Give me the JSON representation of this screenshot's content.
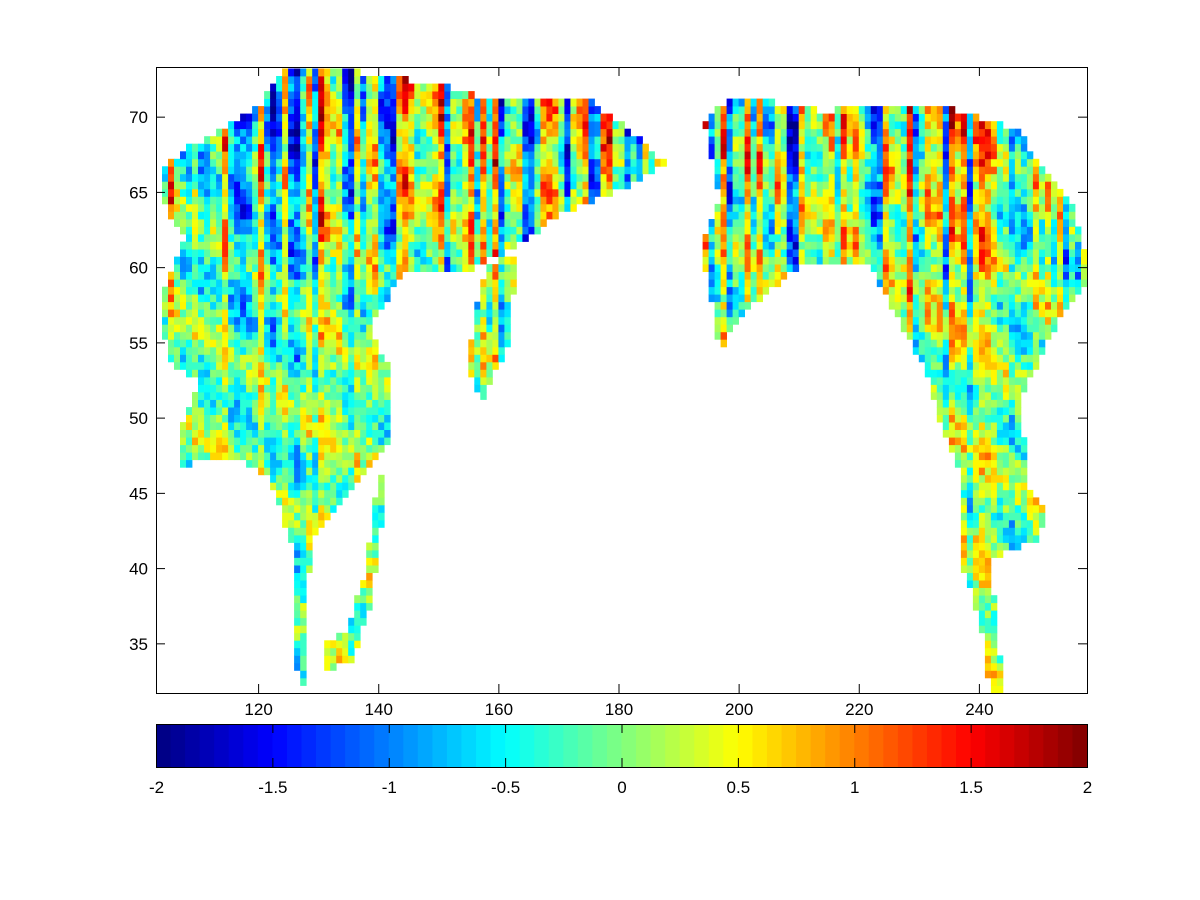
{
  "chart_data": {
    "type": "heatmap",
    "title": "",
    "xlabel": "",
    "ylabel": "",
    "xlim": [
      103,
      258
    ],
    "ylim": [
      31.7,
      73.3
    ],
    "xticks": [
      120,
      140,
      160,
      180,
      200,
      220,
      240
    ],
    "xtick_labels": [
      "120",
      "140",
      "160",
      "180",
      "200",
      "220",
      "240"
    ],
    "yticks": [
      35,
      40,
      45,
      50,
      55,
      60,
      65,
      70
    ],
    "ytick_labels": [
      "35",
      "40",
      "45",
      "50",
      "55",
      "60",
      "65",
      "70"
    ],
    "grid": false,
    "colormap": "jet",
    "colormap_steps": 64,
    "clim": [
      -2,
      2
    ],
    "colorbar": {
      "placement": "bottom",
      "ticks": [
        -2,
        -1.5,
        -1,
        -0.5,
        0,
        0.5,
        1,
        1.5,
        2
      ],
      "tick_labels": [
        "-2",
        "-1.5",
        "-1",
        "-0.5",
        "0",
        "0.5",
        "1",
        "1.5",
        "2"
      ]
    },
    "cell_size_deg": {
      "lon": 1,
      "lat": 0.5
    },
    "regions": [
      {
        "name": "asia",
        "polygon": [
          [
            103.7,
            66.5
          ],
          [
            107.8,
            67.8
          ],
          [
            120.3,
            70.8
          ],
          [
            124.5,
            73.3
          ],
          [
            129.5,
            73.3
          ],
          [
            140.3,
            72.8
          ],
          [
            150.3,
            72.1
          ],
          [
            158.6,
            71.1
          ],
          [
            175.2,
            71.1
          ],
          [
            181.9,
            69.1
          ],
          [
            188,
            66.8
          ],
          [
            178.5,
            64.8
          ],
          [
            170.2,
            63.5
          ],
          [
            163.6,
            61.5
          ],
          [
            155.2,
            59.8
          ],
          [
            143.6,
            59.5
          ],
          [
            138.6,
            55.8
          ],
          [
            141.9,
            53.2
          ],
          [
            141.9,
            48.5
          ],
          [
            133.6,
            44.5
          ],
          [
            128.6,
            41.9
          ],
          [
            125.3,
            41.9
          ],
          [
            121.9,
            45.9
          ],
          [
            117,
            47.2
          ],
          [
            107,
            46.9
          ],
          [
            107,
            49.2
          ],
          [
            110.3,
            52.5
          ],
          [
            106.2,
            53.2
          ],
          [
            103.7,
            55.8
          ],
          [
            104.5,
            58.8
          ],
          [
            107.8,
            61.8
          ],
          [
            103.7,
            64.5
          ]
        ]
      },
      {
        "name": "korea",
        "polygon": [
          [
            126,
            42
          ],
          [
            129,
            42
          ],
          [
            128,
            37
          ],
          [
            127.5,
            32
          ],
          [
            125.5,
            34
          ]
        ]
      },
      {
        "name": "japan",
        "polygon": [
          [
            140,
            46
          ],
          [
            141.5,
            46
          ],
          [
            139,
            38
          ],
          [
            136,
            34
          ],
          [
            131,
            33
          ],
          [
            130.5,
            35
          ],
          [
            135,
            36
          ],
          [
            138,
            40
          ]
        ]
      },
      {
        "name": "kamchatka",
        "polygon": [
          [
            158,
            60
          ],
          [
            163,
            61
          ],
          [
            162,
            55
          ],
          [
            157,
            51
          ],
          [
            155,
            53
          ],
          [
            156,
            57
          ]
        ]
      },
      {
        "name": "north-america",
        "polygon": [
          [
            194.3,
            69.8
          ],
          [
            198.5,
            71.1
          ],
          [
            203.5,
            71.1
          ],
          [
            213.5,
            70.4
          ],
          [
            233.5,
            70.8
          ],
          [
            240.9,
            69.8
          ],
          [
            246.8,
            69.1
          ],
          [
            250.1,
            66.8
          ],
          [
            255.9,
            63.8
          ],
          [
            257.9,
            60.5
          ],
          [
            257.9,
            59.1
          ],
          [
            253.4,
            56.5
          ],
          [
            248.4,
            52.5
          ],
          [
            246.8,
            51.2
          ],
          [
            248.4,
            45.2
          ],
          [
            250.9,
            43.9
          ],
          [
            250.1,
            41.9
          ],
          [
            241.8,
            40.6
          ],
          [
            242.6,
            37.9
          ],
          [
            243.4,
            34.6
          ],
          [
            244.3,
            31.9
          ],
          [
            241.8,
            31.9
          ],
          [
            240.1,
            36.6
          ],
          [
            236.8,
            40.6
          ],
          [
            236.8,
            46.5
          ],
          [
            233.5,
            49.8
          ],
          [
            231.8,
            52.5
          ],
          [
            226.8,
            56.5
          ],
          [
            221.8,
            60.1
          ],
          [
            210.2,
            60.1
          ],
          [
            203.5,
            57.8
          ],
          [
            196.8,
            55.8
          ],
          [
            193.5,
            61.1
          ],
          [
            196.8,
            64.5
          ]
        ]
      },
      {
        "name": "alaska-peninsula",
        "polygon": [
          [
            196,
            56
          ],
          [
            203,
            60
          ],
          [
            204,
            59
          ],
          [
            197,
            54.5
          ]
        ]
      }
    ],
    "seed": 17
  }
}
